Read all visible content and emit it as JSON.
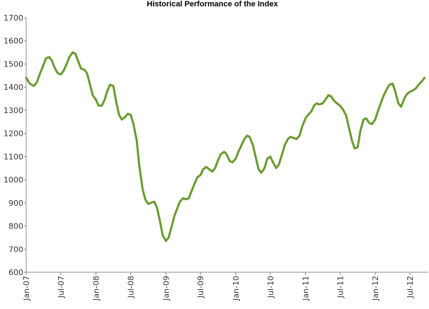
{
  "chart_data": {
    "type": "line",
    "title": "Historical Performance of the Index",
    "xlabel": "",
    "ylabel": "",
    "ylim": [
      600,
      1700
    ],
    "xlim": [
      "2007-01-01",
      "2012-10-01"
    ],
    "grid": false,
    "legend": "none",
    "colors": {
      "series": "#6a9a2f",
      "axis": "#888888"
    },
    "y_ticks": [
      600,
      700,
      800,
      900,
      1000,
      1100,
      1200,
      1300,
      1400,
      1500,
      1600,
      1700
    ],
    "x_ticks": [
      {
        "date": "2007-01-01",
        "label": "Jan-07"
      },
      {
        "date": "2007-07-01",
        "label": "Jul-07"
      },
      {
        "date": "2008-01-01",
        "label": "Jan-08"
      },
      {
        "date": "2008-07-01",
        "label": "Jul-08"
      },
      {
        "date": "2009-01-01",
        "label": "Jan-09"
      },
      {
        "date": "2009-07-01",
        "label": "Jul-09"
      },
      {
        "date": "2010-01-01",
        "label": "Jan-10"
      },
      {
        "date": "2010-07-01",
        "label": "Jul-10"
      },
      {
        "date": "2011-01-01",
        "label": "Jan-11"
      },
      {
        "date": "2011-07-01",
        "label": "Jul-11"
      },
      {
        "date": "2012-01-01",
        "label": "Jan-12"
      },
      {
        "date": "2012-07-01",
        "label": "Jul-12"
      }
    ],
    "series": [
      {
        "points": [
          [
            "2007-01-01",
            1440
          ],
          [
            "2007-01-20",
            1415
          ],
          [
            "2007-02-10",
            1405
          ],
          [
            "2007-02-25",
            1420
          ],
          [
            "2007-03-15",
            1460
          ],
          [
            "2007-04-01",
            1495
          ],
          [
            "2007-04-15",
            1525
          ],
          [
            "2007-05-01",
            1530
          ],
          [
            "2007-05-15",
            1515
          ],
          [
            "2007-06-01",
            1480
          ],
          [
            "2007-06-15",
            1460
          ],
          [
            "2007-07-01",
            1455
          ],
          [
            "2007-07-15",
            1470
          ],
          [
            "2007-08-01",
            1500
          ],
          [
            "2007-08-15",
            1530
          ],
          [
            "2007-09-01",
            1550
          ],
          [
            "2007-09-15",
            1545
          ],
          [
            "2007-10-01",
            1510
          ],
          [
            "2007-10-15",
            1480
          ],
          [
            "2007-11-01",
            1475
          ],
          [
            "2007-11-15",
            1460
          ],
          [
            "2007-12-01",
            1410
          ],
          [
            "2007-12-15",
            1365
          ],
          [
            "2008-01-01",
            1345
          ],
          [
            "2008-01-15",
            1320
          ],
          [
            "2008-02-01",
            1320
          ],
          [
            "2008-02-15",
            1345
          ],
          [
            "2008-03-01",
            1385
          ],
          [
            "2008-03-15",
            1410
          ],
          [
            "2008-04-01",
            1405
          ],
          [
            "2008-04-15",
            1340
          ],
          [
            "2008-05-01",
            1280
          ],
          [
            "2008-05-15",
            1260
          ],
          [
            "2008-06-01",
            1270
          ],
          [
            "2008-06-15",
            1285
          ],
          [
            "2008-07-01",
            1280
          ],
          [
            "2008-07-15",
            1240
          ],
          [
            "2008-08-01",
            1170
          ],
          [
            "2008-08-15",
            1060
          ],
          [
            "2008-09-01",
            960
          ],
          [
            "2008-09-15",
            915
          ],
          [
            "2008-10-01",
            895
          ],
          [
            "2008-10-15",
            900
          ],
          [
            "2008-11-01",
            905
          ],
          [
            "2008-11-15",
            880
          ],
          [
            "2008-12-01",
            820
          ],
          [
            "2008-12-15",
            760
          ],
          [
            "2009-01-01",
            735
          ],
          [
            "2009-01-15",
            750
          ],
          [
            "2009-02-01",
            800
          ],
          [
            "2009-02-15",
            845
          ],
          [
            "2009-03-01",
            875
          ],
          [
            "2009-03-15",
            905
          ],
          [
            "2009-04-01",
            920
          ],
          [
            "2009-04-15",
            915
          ],
          [
            "2009-05-01",
            920
          ],
          [
            "2009-05-15",
            950
          ],
          [
            "2009-06-01",
            985
          ],
          [
            "2009-06-15",
            1010
          ],
          [
            "2009-07-01",
            1020
          ],
          [
            "2009-07-15",
            1045
          ],
          [
            "2009-08-01",
            1055
          ],
          [
            "2009-08-15",
            1045
          ],
          [
            "2009-09-01",
            1035
          ],
          [
            "2009-09-15",
            1050
          ],
          [
            "2009-10-01",
            1085
          ],
          [
            "2009-10-15",
            1110
          ],
          [
            "2009-11-01",
            1120
          ],
          [
            "2009-11-15",
            1110
          ],
          [
            "2009-12-01",
            1080
          ],
          [
            "2009-12-15",
            1075
          ],
          [
            "2010-01-01",
            1090
          ],
          [
            "2010-01-15",
            1120
          ],
          [
            "2010-02-01",
            1150
          ],
          [
            "2010-02-15",
            1175
          ],
          [
            "2010-03-01",
            1190
          ],
          [
            "2010-03-15",
            1185
          ],
          [
            "2010-04-01",
            1150
          ],
          [
            "2010-04-15",
            1100
          ],
          [
            "2010-05-01",
            1045
          ],
          [
            "2010-05-15",
            1030
          ],
          [
            "2010-06-01",
            1050
          ],
          [
            "2010-06-15",
            1090
          ],
          [
            "2010-07-01",
            1100
          ],
          [
            "2010-07-15",
            1075
          ],
          [
            "2010-08-01",
            1050
          ],
          [
            "2010-08-15",
            1065
          ],
          [
            "2010-09-01",
            1110
          ],
          [
            "2010-09-15",
            1150
          ],
          [
            "2010-10-01",
            1175
          ],
          [
            "2010-10-15",
            1185
          ],
          [
            "2010-11-01",
            1180
          ],
          [
            "2010-11-15",
            1175
          ],
          [
            "2010-12-01",
            1190
          ],
          [
            "2010-12-15",
            1230
          ],
          [
            "2011-01-01",
            1265
          ],
          [
            "2011-01-15",
            1280
          ],
          [
            "2011-02-01",
            1295
          ],
          [
            "2011-02-15",
            1320
          ],
          [
            "2011-03-01",
            1330
          ],
          [
            "2011-03-15",
            1325
          ],
          [
            "2011-04-01",
            1330
          ],
          [
            "2011-04-15",
            1345
          ],
          [
            "2011-05-01",
            1365
          ],
          [
            "2011-05-15",
            1360
          ],
          [
            "2011-06-01",
            1340
          ],
          [
            "2011-06-15",
            1330
          ],
          [
            "2011-07-01",
            1320
          ],
          [
            "2011-07-15",
            1305
          ],
          [
            "2011-08-01",
            1280
          ],
          [
            "2011-08-15",
            1230
          ],
          [
            "2011-09-01",
            1170
          ],
          [
            "2011-09-15",
            1135
          ],
          [
            "2011-10-01",
            1140
          ],
          [
            "2011-10-15",
            1210
          ],
          [
            "2011-11-01",
            1260
          ],
          [
            "2011-11-15",
            1265
          ],
          [
            "2011-12-01",
            1245
          ],
          [
            "2011-12-15",
            1240
          ],
          [
            "2012-01-01",
            1260
          ],
          [
            "2012-01-15",
            1295
          ],
          [
            "2012-02-01",
            1335
          ],
          [
            "2012-02-15",
            1365
          ],
          [
            "2012-03-01",
            1390
          ],
          [
            "2012-03-15",
            1410
          ],
          [
            "2012-04-01",
            1415
          ],
          [
            "2012-04-15",
            1380
          ],
          [
            "2012-05-01",
            1330
          ],
          [
            "2012-05-15",
            1315
          ],
          [
            "2012-06-01",
            1350
          ],
          [
            "2012-06-15",
            1370
          ],
          [
            "2012-07-01",
            1380
          ],
          [
            "2012-07-15",
            1385
          ],
          [
            "2012-08-01",
            1395
          ],
          [
            "2012-08-15",
            1410
          ],
          [
            "2012-09-01",
            1425
          ],
          [
            "2012-09-15",
            1440
          ]
        ]
      }
    ]
  }
}
